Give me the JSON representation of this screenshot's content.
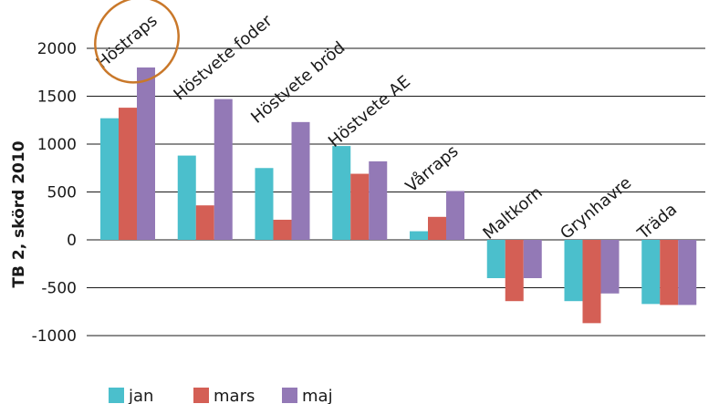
{
  "chart_data": {
    "type": "bar",
    "categories": [
      "Höstraps",
      "Höstvete foder",
      "Höstvete bröd",
      "Höstvete AE",
      "Vårraps",
      "Maltkorn",
      "Grynhavre",
      "Träda"
    ],
    "series": [
      {
        "name": "jan",
        "color": "#4bbfcc",
        "values": [
          1270,
          880,
          750,
          980,
          90,
          -400,
          -640,
          -670
        ]
      },
      {
        "name": "mars",
        "color": "#d45f55",
        "values": [
          1380,
          360,
          210,
          690,
          240,
          -640,
          -870,
          -680
        ]
      },
      {
        "name": "maj",
        "color": "#9379b6",
        "values": [
          1800,
          1470,
          1230,
          820,
          510,
          -400,
          -560,
          -680
        ]
      }
    ],
    "title": "",
    "xlabel": "",
    "ylabel": "TB 2, skörd 2010",
    "ylim": [
      -1000,
      2000
    ],
    "yticks": [
      2000,
      1500,
      1000,
      500,
      0,
      -500,
      -1000
    ],
    "ytick_labels": [
      "2000",
      "1500",
      "1000",
      "500",
      "0",
      "-500",
      "-1000"
    ],
    "grid": "horizontal",
    "legend_placement": "bottom-left",
    "highlight": {
      "category": "Höstraps",
      "shape": "ellipse",
      "color": "#c9782a"
    },
    "axis_color": "#1a1a1a"
  }
}
